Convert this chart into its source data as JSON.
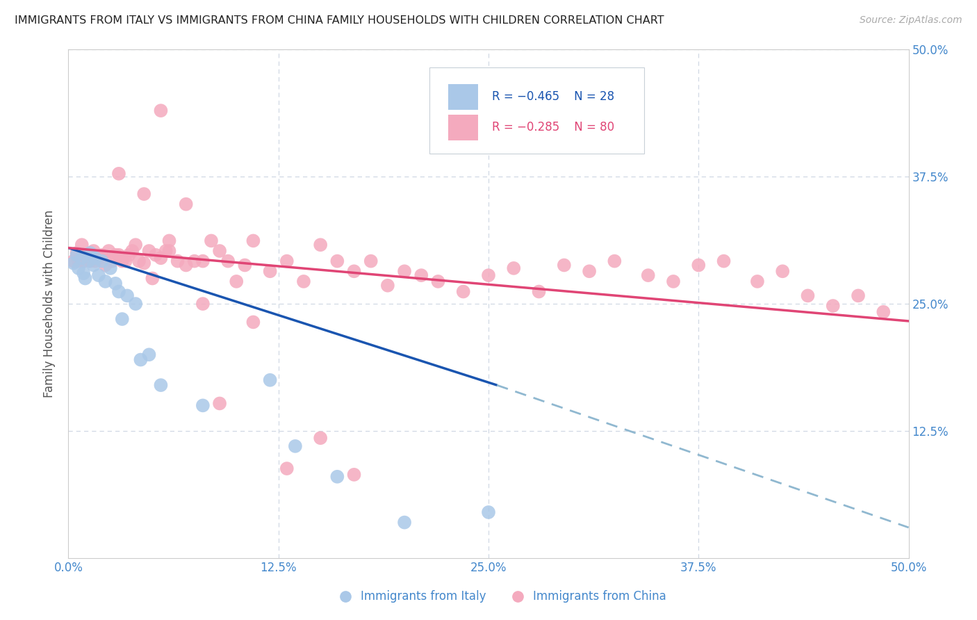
{
  "title": "IMMIGRANTS FROM ITALY VS IMMIGRANTS FROM CHINA FAMILY HOUSEHOLDS WITH CHILDREN CORRELATION CHART",
  "source": "Source: ZipAtlas.com",
  "ylabel": "Family Households with Children",
  "xlim": [
    0.0,
    0.5
  ],
  "ylim": [
    0.0,
    0.5
  ],
  "italy_color": "#aac8e8",
  "china_color": "#f4aabe",
  "italy_line_color": "#1a55b0",
  "china_line_color": "#e04575",
  "dashed_line_color": "#90b8d0",
  "background_color": "#ffffff",
  "grid_color": "#d0d8e4",
  "axis_tick_color": "#4488cc",
  "italy_x": [
    0.003,
    0.005,
    0.006,
    0.008,
    0.009,
    0.01,
    0.012,
    0.013,
    0.015,
    0.016,
    0.018,
    0.02,
    0.022,
    0.025,
    0.028,
    0.03,
    0.032,
    0.035,
    0.04,
    0.043,
    0.048,
    0.055,
    0.08,
    0.12,
    0.135,
    0.16,
    0.2,
    0.25
  ],
  "italy_y": [
    0.29,
    0.298,
    0.285,
    0.295,
    0.28,
    0.275,
    0.292,
    0.3,
    0.288,
    0.295,
    0.278,
    0.292,
    0.272,
    0.285,
    0.27,
    0.262,
    0.235,
    0.258,
    0.25,
    0.195,
    0.2,
    0.17,
    0.15,
    0.175,
    0.11,
    0.08,
    0.035,
    0.045
  ],
  "china_x": [
    0.003,
    0.005,
    0.006,
    0.008,
    0.009,
    0.01,
    0.011,
    0.012,
    0.013,
    0.015,
    0.016,
    0.018,
    0.02,
    0.022,
    0.024,
    0.026,
    0.028,
    0.03,
    0.032,
    0.034,
    0.036,
    0.038,
    0.04,
    0.042,
    0.045,
    0.048,
    0.05,
    0.052,
    0.055,
    0.058,
    0.06,
    0.065,
    0.07,
    0.075,
    0.08,
    0.085,
    0.09,
    0.095,
    0.1,
    0.105,
    0.11,
    0.12,
    0.13,
    0.14,
    0.15,
    0.16,
    0.17,
    0.18,
    0.19,
    0.2,
    0.21,
    0.22,
    0.235,
    0.25,
    0.265,
    0.28,
    0.295,
    0.31,
    0.325,
    0.345,
    0.36,
    0.375,
    0.39,
    0.41,
    0.425,
    0.44,
    0.455,
    0.47,
    0.485,
    0.03,
    0.045,
    0.055,
    0.07,
    0.09,
    0.11,
    0.13,
    0.15,
    0.17,
    0.06,
    0.08
  ],
  "china_y": [
    0.292,
    0.3,
    0.292,
    0.308,
    0.292,
    0.298,
    0.295,
    0.298,
    0.292,
    0.302,
    0.292,
    0.295,
    0.298,
    0.288,
    0.302,
    0.292,
    0.298,
    0.298,
    0.292,
    0.292,
    0.298,
    0.302,
    0.308,
    0.292,
    0.29,
    0.302,
    0.275,
    0.298,
    0.295,
    0.302,
    0.302,
    0.292,
    0.288,
    0.292,
    0.292,
    0.312,
    0.302,
    0.292,
    0.272,
    0.288,
    0.312,
    0.282,
    0.292,
    0.272,
    0.308,
    0.292,
    0.282,
    0.292,
    0.268,
    0.282,
    0.278,
    0.272,
    0.262,
    0.278,
    0.285,
    0.262,
    0.288,
    0.282,
    0.292,
    0.278,
    0.272,
    0.288,
    0.292,
    0.272,
    0.282,
    0.258,
    0.248,
    0.258,
    0.242,
    0.378,
    0.358,
    0.44,
    0.348,
    0.152,
    0.232,
    0.088,
    0.118,
    0.082,
    0.312,
    0.25
  ]
}
